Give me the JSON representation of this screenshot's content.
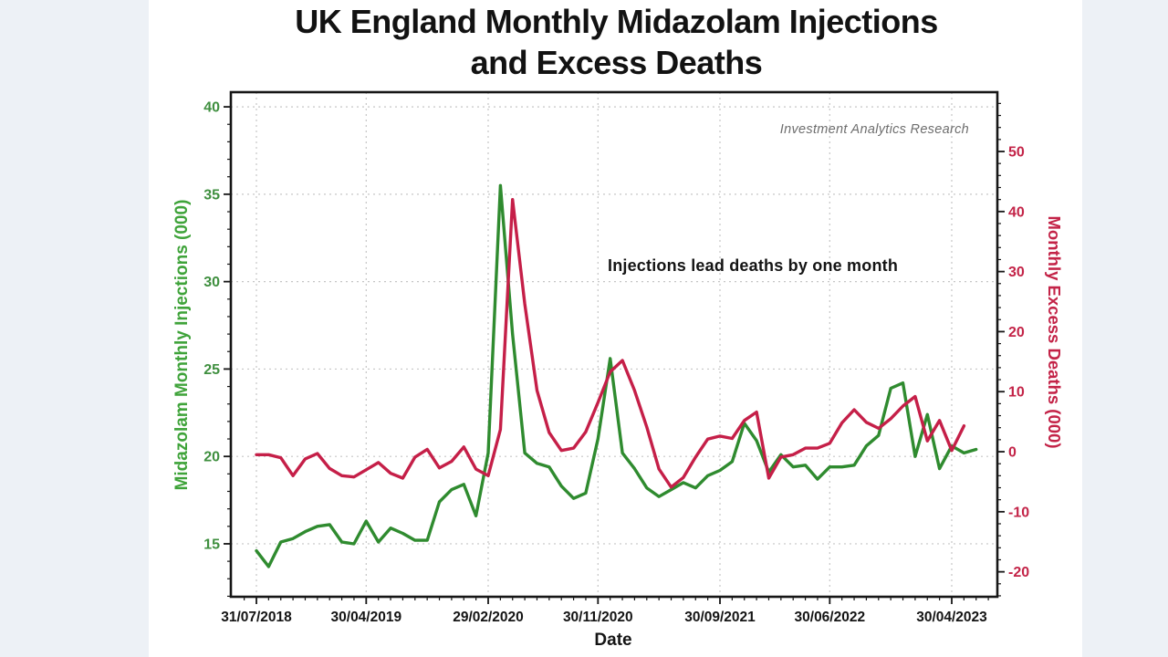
{
  "chart_data": {
    "type": "line",
    "title": "UK England Monthly Midazolam Injections and Excess Deaths",
    "title_line1": "UK England Monthly Midazolam Injections",
    "title_line2": "and Excess Deaths",
    "watermark": "Investment Analytics Research",
    "annotation": "Injections lead deaths by one month",
    "xlabel": "Date",
    "x_tick_labels": [
      "31/07/2018",
      "30/04/2019",
      "29/02/2020",
      "30/11/2020",
      "30/09/2021",
      "30/06/2022",
      "30/04/2023"
    ],
    "x_tick_month_indices": [
      0,
      9,
      19,
      28,
      38,
      47,
      57
    ],
    "months": [
      "Jul 2018",
      "Aug 2018",
      "Sep 2018",
      "Oct 2018",
      "Nov 2018",
      "Dec 2018",
      "Jan 2019",
      "Feb 2019",
      "Mar 2019",
      "Apr 2019",
      "May 2019",
      "Jun 2019",
      "Jul 2019",
      "Aug 2019",
      "Sep 2019",
      "Oct 2019",
      "Nov 2019",
      "Dec 2019",
      "Jan 2020",
      "Feb 2020",
      "Mar 2020",
      "Apr 2020",
      "May 2020",
      "Jun 2020",
      "Jul 2020",
      "Aug 2020",
      "Sep 2020",
      "Oct 2020",
      "Nov 2020",
      "Dec 2020",
      "Jan 2021",
      "Feb 2021",
      "Mar 2021",
      "Apr 2021",
      "May 2021",
      "Jun 2021",
      "Jul 2021",
      "Aug 2021",
      "Sep 2021",
      "Oct 2021",
      "Nov 2021",
      "Dec 2021",
      "Jan 2022",
      "Feb 2022",
      "Mar 2022",
      "Apr 2022",
      "May 2022",
      "Jun 2022",
      "Jul 2022",
      "Aug 2022",
      "Sep 2022",
      "Oct 2022",
      "Nov 2022",
      "Dec 2022",
      "Jan 2023",
      "Feb 2023",
      "Mar 2023",
      "Apr 2023",
      "May 2023",
      "Jun 2023"
    ],
    "series": [
      {
        "name": "Midazolam Monthly Injections (000)",
        "axis": "left",
        "color": "#2f8b2f",
        "values": [
          14.6,
          13.7,
          15.1,
          15.3,
          15.7,
          16.0,
          16.1,
          15.1,
          15.0,
          16.3,
          15.1,
          15.9,
          15.6,
          15.2,
          15.2,
          17.4,
          18.1,
          18.4,
          16.6,
          20.2,
          35.5,
          27.0,
          20.2,
          19.6,
          19.4,
          18.3,
          17.6,
          17.9,
          21.0,
          25.6,
          20.2,
          19.3,
          18.2,
          17.7,
          18.1,
          18.5,
          18.2,
          18.9,
          19.2,
          19.7,
          21.9,
          20.9,
          19.1,
          20.1,
          19.4,
          19.5,
          18.7,
          19.4,
          19.4,
          19.5,
          20.6,
          21.2,
          23.9,
          24.2,
          20.0,
          22.4,
          19.3,
          20.6,
          20.2,
          20.4
        ]
      },
      {
        "name": "Monthly Excess Deaths (000)",
        "axis": "right",
        "color": "#c51f48",
        "values": [
          -0.5,
          -0.5,
          -1.0,
          -4.0,
          -1.2,
          -0.3,
          -2.8,
          -4.0,
          -4.2,
          -3.0,
          -1.8,
          -3.6,
          -4.4,
          -0.9,
          0.4,
          -2.7,
          -1.6,
          0.8,
          -2.9,
          -4.0,
          3.7,
          42.0,
          24.6,
          10.2,
          3.2,
          0.2,
          0.6,
          3.3,
          8.2,
          13.3,
          15.2,
          10.2,
          4.1,
          -2.9,
          -5.9,
          -4.3,
          -0.9,
          2.1,
          2.6,
          2.2,
          5.2,
          6.6,
          -4.4,
          -0.9,
          -0.5,
          0.6,
          0.6,
          1.4,
          4.8,
          7.0,
          4.9,
          3.9,
          5.5,
          7.6,
          9.2,
          1.8,
          5.2,
          0.2,
          4.3
        ]
      }
    ],
    "left_axis": {
      "label": "Midazolam Monthly Injections (000)",
      "color": "#3fa33a",
      "tick_color": "#3f8f3f",
      "ticks": [
        15,
        20,
        25,
        30,
        35,
        40
      ],
      "min": 11.97,
      "max": 40.84,
      "minor_step": 1
    },
    "right_axis": {
      "label": "Monthly Excess Deaths (000)",
      "color": "#c32347",
      "tick_color": "#c32347",
      "ticks": [
        -20,
        -10,
        0,
        10,
        20,
        30,
        40,
        50
      ],
      "min": -24.16,
      "max": 59.88,
      "minor_step": 2
    },
    "grid": {
      "show": true,
      "style": "dashed",
      "color": "#c6c6c6"
    },
    "legend": "none"
  }
}
